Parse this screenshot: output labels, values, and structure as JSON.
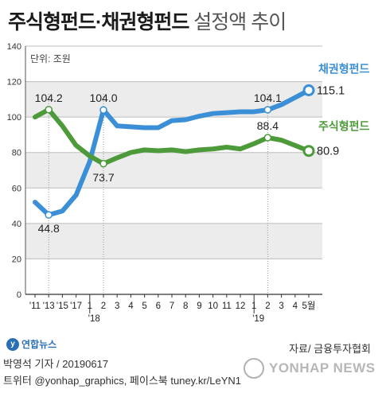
{
  "header": {
    "title_main": "주식형펀드·채권형펀드",
    "title_sub": " 설정액 추이"
  },
  "chart_data": {
    "type": "line",
    "unit_label": "단위: 조원",
    "ylim": [
      0,
      140
    ],
    "yticks": [
      "0",
      "20",
      "40",
      "60",
      "80",
      "100",
      "120",
      "140"
    ],
    "x_labels": [
      "'11",
      "'13",
      "'15",
      "'17",
      "1",
      "2",
      "3",
      "4",
      "5",
      "6",
      "7",
      "8",
      "9",
      "10",
      "11",
      "12",
      "1",
      "2",
      "3",
      "4",
      "5월"
    ],
    "year_labels": [
      "'18",
      "'19"
    ],
    "series": [
      {
        "name": "채권형펀드",
        "color": "#3a8fd6",
        "values": [
          52,
          44.8,
          47,
          56,
          75,
          104.0,
          95,
          94.5,
          94,
          94,
          98,
          98.5,
          100.5,
          102,
          102.5,
          103,
          103,
          104.1,
          107,
          111,
          115.1
        ],
        "end_value_label": "115.1",
        "point_labels": [
          {
            "index": 1,
            "text": "44.8",
            "pos": "below"
          },
          {
            "index": 5,
            "text": "104.0",
            "pos": "above"
          },
          {
            "index": 17,
            "text": "104.1",
            "pos": "above"
          }
        ]
      },
      {
        "name": "주식형펀드",
        "color": "#4d9a3a",
        "values": [
          100,
          104.2,
          95,
          84,
          78,
          73.7,
          77,
          80,
          81.5,
          81,
          81.5,
          80.5,
          81.5,
          82,
          83,
          82,
          85,
          88.4,
          87,
          84,
          80.9
        ],
        "end_value_label": "80.9",
        "point_labels": [
          {
            "index": 1,
            "text": "104.2",
            "pos": "above"
          },
          {
            "index": 5,
            "text": "73.7",
            "pos": "below"
          },
          {
            "index": 17,
            "text": "88.4",
            "pos": "above"
          }
        ]
      }
    ]
  },
  "footer": {
    "logo_text": "연합뉴스",
    "source": "자료/ 금융투자협회",
    "reporter": "박영석 기자 / 20190617",
    "twitter": "트위터 @yonhap_graphics, 페이스북 tuney.kr/LeYN1",
    "watermark": "YONHAP NEWS"
  }
}
